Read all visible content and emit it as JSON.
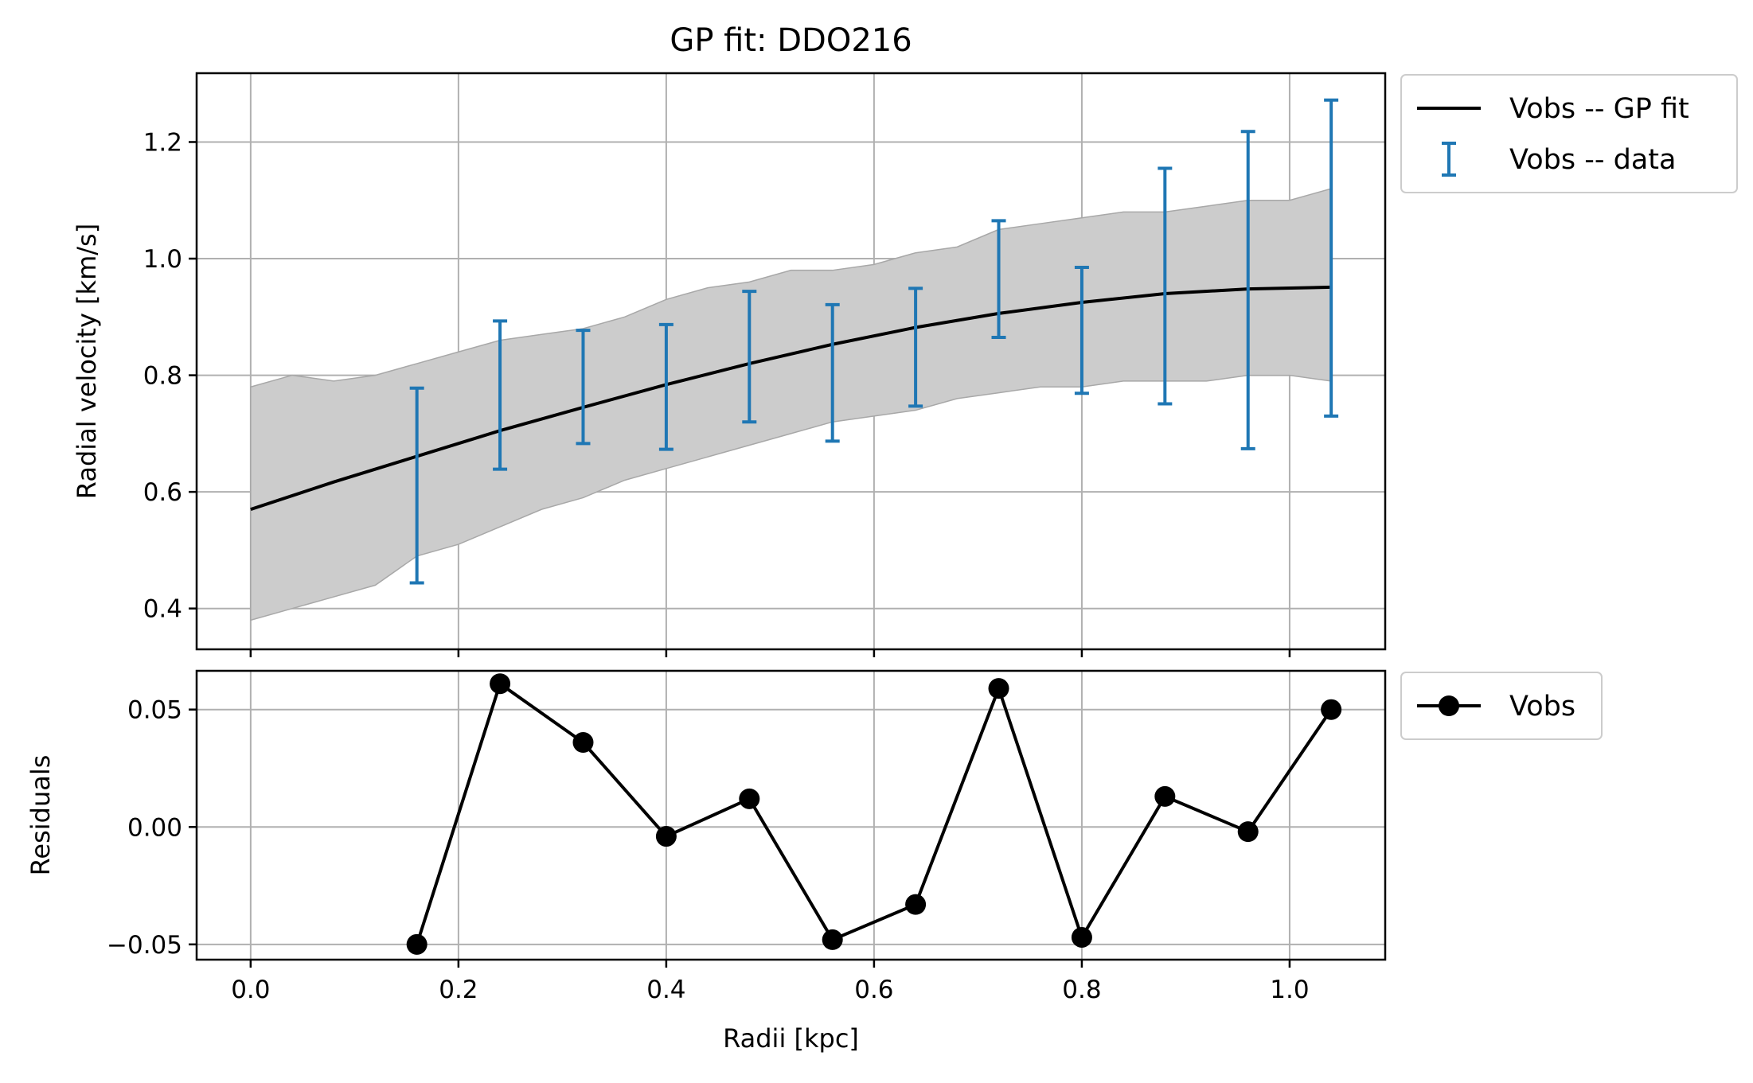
{
  "chart_data": [
    {
      "type": "line",
      "title": "GP fit: DDO216",
      "xlabel": "",
      "ylabel": "Radial velocity [km/s]",
      "xlim": [
        -0.052,
        1.092
      ],
      "ylim": [
        0.33,
        1.318
      ],
      "xticks": [
        0.0,
        0.2,
        0.4,
        0.6,
        0.8,
        1.0
      ],
      "xtick_labels": [
        "",
        "",
        "",
        "",
        "",
        ""
      ],
      "yticks": [
        0.4,
        0.6,
        0.8,
        1.0,
        1.2
      ],
      "ytick_labels": [
        "0.4",
        "0.6",
        "0.8",
        "1.0",
        "1.2"
      ],
      "grid": true,
      "legend": {
        "placement": "outside-upper-right",
        "entries": [
          "Vobs -- GP fit",
          "Vobs -- data"
        ]
      },
      "series": [
        {
          "name": "Vobs -- GP fit",
          "kind": "line",
          "color": "#000000",
          "x": [
            0.0,
            0.08,
            0.16,
            0.24,
            0.32,
            0.4,
            0.48,
            0.56,
            0.64,
            0.72,
            0.8,
            0.88,
            0.96,
            1.04
          ],
          "y": [
            0.57,
            0.617,
            0.661,
            0.705,
            0.745,
            0.784,
            0.82,
            0.853,
            0.882,
            0.906,
            0.925,
            0.94,
            0.948,
            0.951
          ]
        },
        {
          "name": "Vobs -- data",
          "kind": "errorbar",
          "color": "#1f77b4",
          "x": [
            0.16,
            0.24,
            0.32,
            0.4,
            0.48,
            0.56,
            0.64,
            0.72,
            0.8,
            0.88,
            0.96,
            1.04
          ],
          "y": [
            0.611,
            0.766,
            0.78,
            0.78,
            0.832,
            0.804,
            0.848,
            0.965,
            0.877,
            0.953,
            0.946,
            1.001
          ],
          "err": [
            0.167,
            0.127,
            0.097,
            0.107,
            0.112,
            0.117,
            0.101,
            0.1,
            0.108,
            0.202,
            0.272,
            0.271
          ]
        }
      ],
      "band": {
        "kind": "fill_between",
        "color": "#cccccc",
        "x": [
          0.0,
          0.04,
          0.08,
          0.12,
          0.16,
          0.2,
          0.24,
          0.28,
          0.32,
          0.36,
          0.4,
          0.44,
          0.48,
          0.52,
          0.56,
          0.6,
          0.64,
          0.68,
          0.72,
          0.76,
          0.8,
          0.84,
          0.88,
          0.92,
          0.96,
          1.0,
          1.04
        ],
        "upper": [
          0.78,
          0.8,
          0.79,
          0.8,
          0.82,
          0.84,
          0.86,
          0.87,
          0.88,
          0.9,
          0.93,
          0.95,
          0.96,
          0.98,
          0.98,
          0.99,
          1.01,
          1.02,
          1.05,
          1.06,
          1.07,
          1.08,
          1.08,
          1.09,
          1.1,
          1.1,
          1.12
        ],
        "lower": [
          0.38,
          0.4,
          0.42,
          0.44,
          0.49,
          0.51,
          0.54,
          0.57,
          0.59,
          0.62,
          0.64,
          0.66,
          0.68,
          0.7,
          0.72,
          0.73,
          0.74,
          0.76,
          0.77,
          0.78,
          0.78,
          0.79,
          0.79,
          0.79,
          0.8,
          0.8,
          0.79
        ]
      }
    },
    {
      "type": "line",
      "title": "",
      "xlabel": "Radii [kpc]",
      "ylabel": "Residuals",
      "xlim": [
        -0.052,
        1.092
      ],
      "ylim": [
        -0.0565,
        0.0665
      ],
      "xticks": [
        0.0,
        0.2,
        0.4,
        0.6,
        0.8,
        1.0
      ],
      "xtick_labels": [
        "0.0",
        "0.2",
        "0.4",
        "0.6",
        "0.8",
        "1.0"
      ],
      "yticks": [
        -0.05,
        0.0,
        0.05
      ],
      "ytick_labels": [
        "−0.05",
        "0.00",
        "0.05"
      ],
      "grid": true,
      "legend": {
        "placement": "outside-upper-right",
        "entries": [
          "Vobs"
        ]
      },
      "series": [
        {
          "name": "Vobs",
          "kind": "line-marker",
          "color": "#000000",
          "x": [
            0.16,
            0.24,
            0.32,
            0.4,
            0.48,
            0.56,
            0.64,
            0.72,
            0.8,
            0.88,
            0.96,
            1.04
          ],
          "y": [
            -0.05,
            0.061,
            0.036,
            -0.004,
            0.012,
            -0.048,
            -0.033,
            0.059,
            -0.047,
            0.013,
            -0.002,
            0.05
          ]
        }
      ]
    }
  ]
}
